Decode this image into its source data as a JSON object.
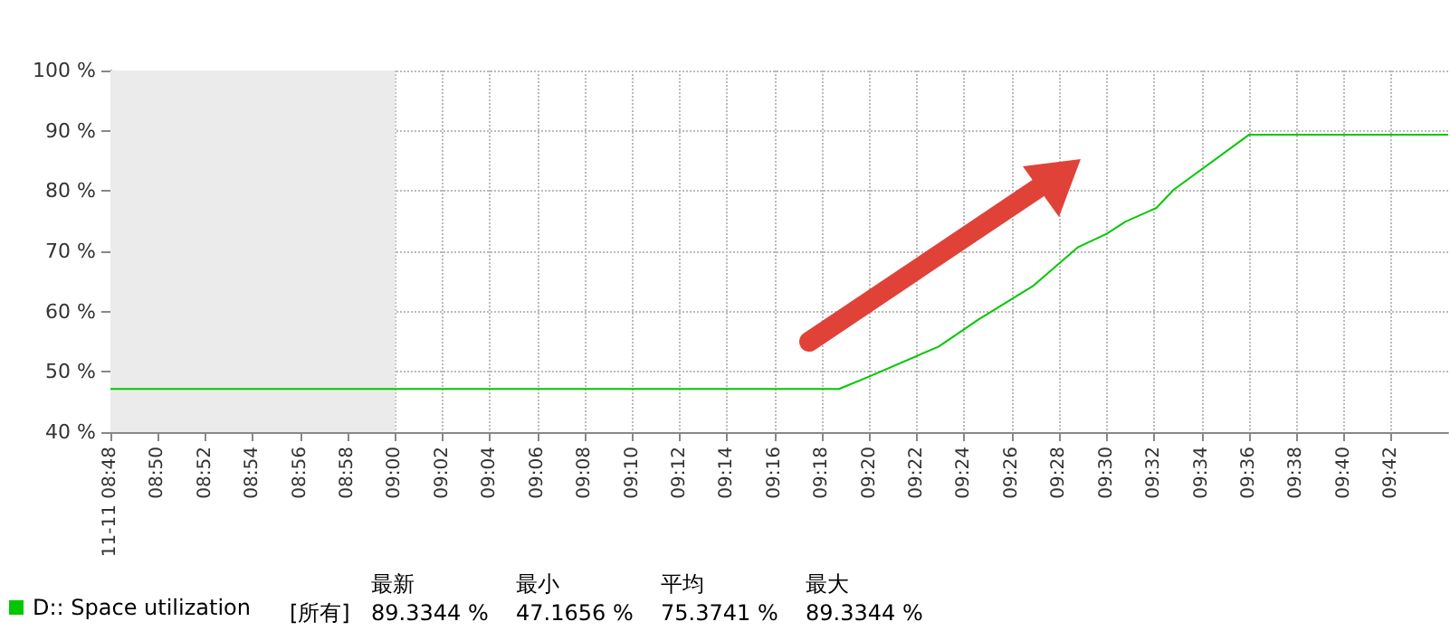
{
  "chart_data": {
    "type": "line",
    "x": [
      8.8,
      9.312,
      9.333,
      9.382,
      9.41,
      9.448,
      9.48,
      9.5,
      9.513,
      9.535,
      9.547,
      9.6,
      9.74
    ],
    "series": [
      {
        "name": "D:: Space utilization",
        "color": "#00c800",
        "values": [
          47.1656,
          47.1656,
          49.2,
          54.2,
          58.7,
          64.2,
          70.7,
          72.9,
          74.9,
          77.2,
          80.2,
          89.3344,
          89.3344
        ]
      }
    ],
    "xlim": [
      8.8,
      9.74
    ],
    "xticks": [
      {
        "value": 8.8,
        "label": "11-11 08:48"
      },
      {
        "value": 8.8333,
        "label": "08:50"
      },
      {
        "value": 8.8667,
        "label": "08:52"
      },
      {
        "value": 8.9,
        "label": "08:54"
      },
      {
        "value": 8.9333,
        "label": "08:56"
      },
      {
        "value": 8.9667,
        "label": "08:58"
      },
      {
        "value": 9.0,
        "label": "09:00"
      },
      {
        "value": 9.0333,
        "label": "09:02"
      },
      {
        "value": 9.0667,
        "label": "09:04"
      },
      {
        "value": 9.1,
        "label": "09:06"
      },
      {
        "value": 9.1333,
        "label": "09:08"
      },
      {
        "value": 9.1667,
        "label": "09:10"
      },
      {
        "value": 9.2,
        "label": "09:12"
      },
      {
        "value": 9.2333,
        "label": "09:14"
      },
      {
        "value": 9.2667,
        "label": "09:16"
      },
      {
        "value": 9.3,
        "label": "09:18"
      },
      {
        "value": 9.3333,
        "label": "09:20"
      },
      {
        "value": 9.3667,
        "label": "09:22"
      },
      {
        "value": 9.4,
        "label": "09:24"
      },
      {
        "value": 9.4333,
        "label": "09:26"
      },
      {
        "value": 9.4667,
        "label": "09:28"
      },
      {
        "value": 9.5,
        "label": "09:30"
      },
      {
        "value": 9.5333,
        "label": "09:32"
      },
      {
        "value": 9.5667,
        "label": "09:34"
      },
      {
        "value": 9.6,
        "label": "09:36"
      },
      {
        "value": 9.6333,
        "label": "09:38"
      },
      {
        "value": 9.6667,
        "label": "09:40"
      },
      {
        "value": 9.7,
        "label": "09:42"
      }
    ],
    "ylim": [
      40,
      100
    ],
    "yticks": [
      {
        "value": 40,
        "label": "40 %"
      },
      {
        "value": 50,
        "label": "50 %"
      },
      {
        "value": 60,
        "label": "60 %"
      },
      {
        "value": 70,
        "label": "70 %"
      },
      {
        "value": 80,
        "label": "80 %"
      },
      {
        "value": 90,
        "label": "90 %"
      },
      {
        "value": 100,
        "label": "100 %"
      }
    ],
    "bands": [
      {
        "axis": "x",
        "from": 8.8,
        "to": 9.0,
        "color": "#ebebeb"
      }
    ],
    "annotations": [
      "[所有]",
      "最新",
      "最小",
      "平均",
      "最大",
      "89.3344 %",
      "47.1656 %",
      "75.3741 %",
      "89.3344 %"
    ],
    "grid": true,
    "legend": "bottom left",
    "line_style": "solid",
    "marker": "none"
  }
}
